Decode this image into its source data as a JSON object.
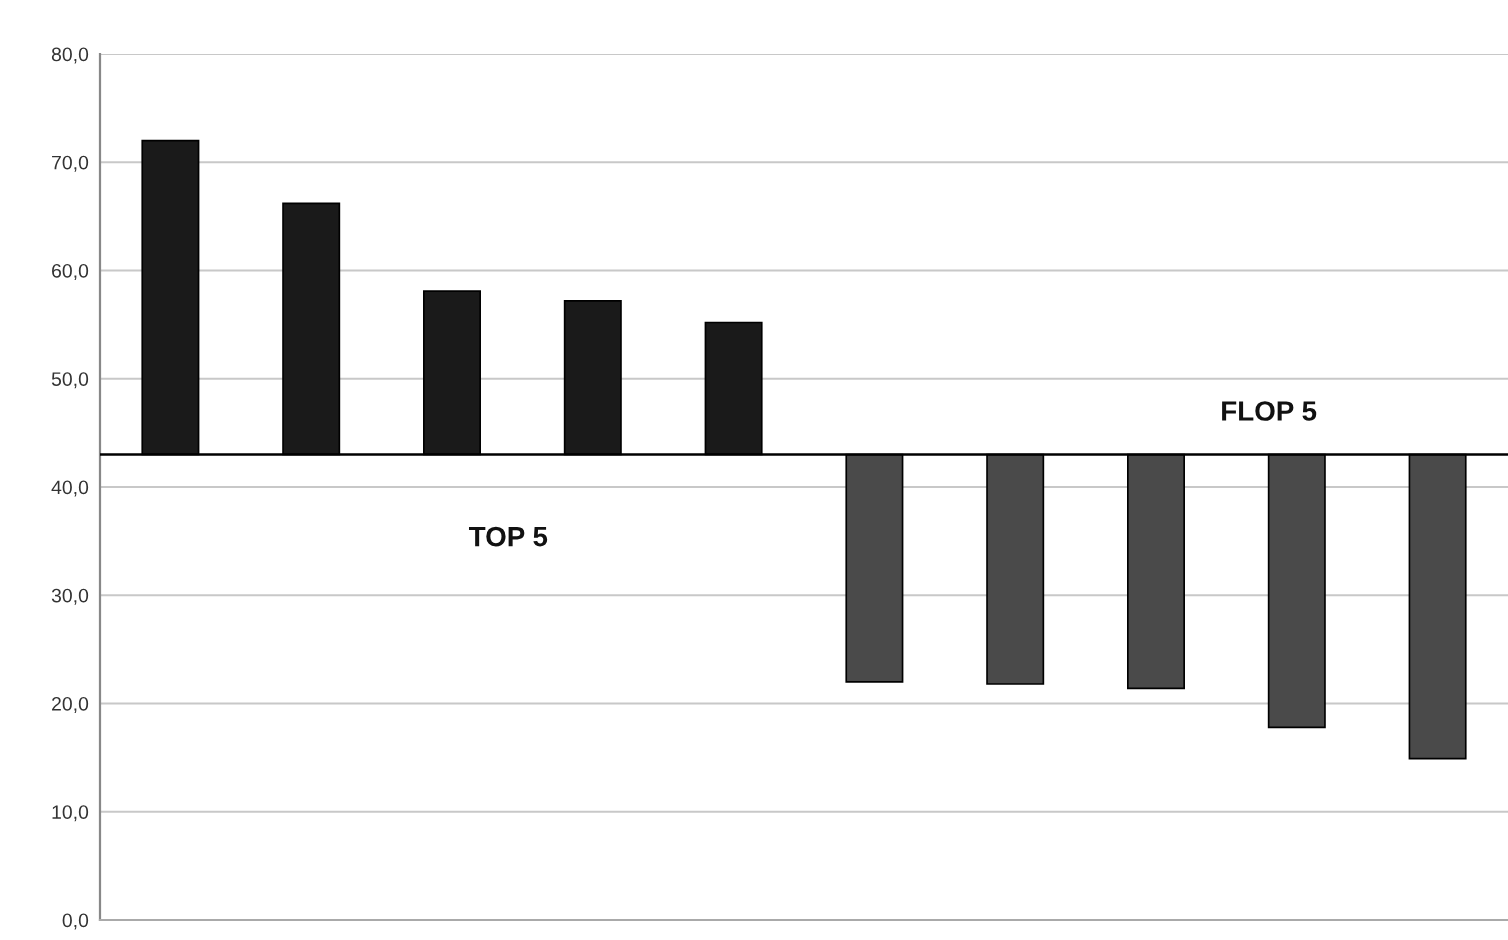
{
  "chart_data": {
    "type": "bar",
    "categories": [
      null,
      null,
      null,
      null,
      null,
      null,
      null,
      null,
      null,
      null
    ],
    "base": [
      43,
      43,
      43,
      43,
      43,
      43,
      43,
      43,
      43,
      43
    ],
    "values": [
      29.0,
      23.2,
      15.1,
      14.2,
      12.2,
      -21.0,
      -21.2,
      -21.6,
      -25.2,
      -28.1
    ],
    "colors": [
      "#1a1a1a",
      "#1a1a1a",
      "#1a1a1a",
      "#1a1a1a",
      "#1a1a1a",
      "#4a4a4a",
      "#4a4a4a",
      "#4a4a4a",
      "#4a4a4a",
      "#4a4a4a"
    ],
    "ylim": [
      0,
      80
    ],
    "yticks": [
      {
        "value": 0,
        "label": "0,0"
      },
      {
        "value": 10,
        "label": "10,0"
      },
      {
        "value": 20,
        "label": "20,0"
      },
      {
        "value": 30,
        "label": "30,0"
      },
      {
        "value": 40,
        "label": "40,0"
      },
      {
        "value": 50,
        "label": "50,0"
      },
      {
        "value": 60,
        "label": "60,0"
      },
      {
        "value": 70,
        "label": "70,0"
      },
      {
        "value": 80,
        "label": "80,0"
      }
    ],
    "annotations": [
      "TOP 5",
      "FLOP 5"
    ],
    "ref_lines": [
      {
        "axis": "y",
        "value": 43,
        "color": "#000000"
      }
    ],
    "grid": "y",
    "tick_labels": "y",
    "legend": false
  }
}
